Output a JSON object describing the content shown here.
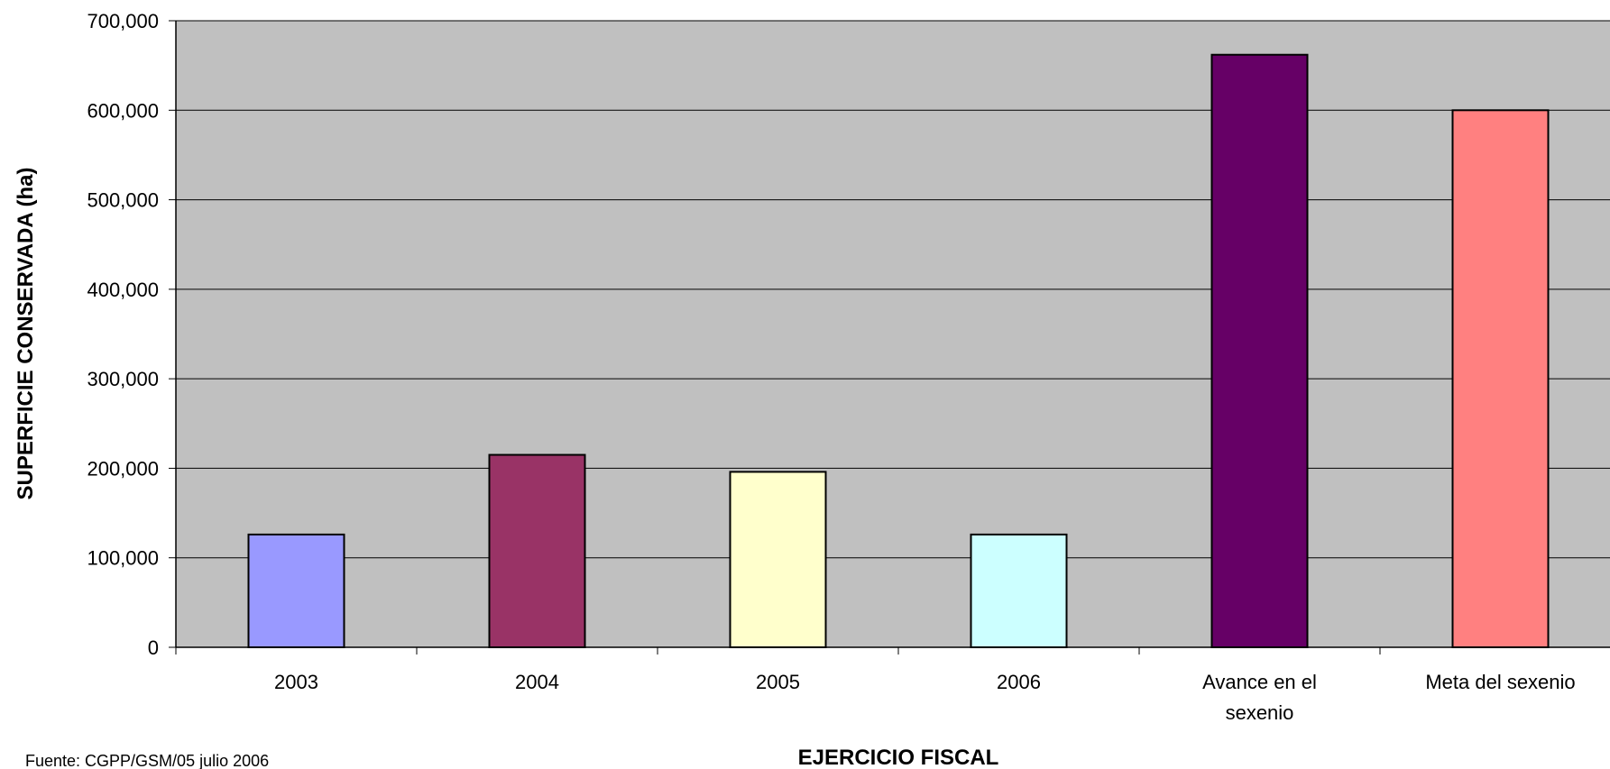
{
  "chart_data": {
    "type": "bar",
    "categories": [
      "2003",
      "2004",
      "2005",
      "2006",
      "Avance en el sexenio",
      "Meta del sexenio"
    ],
    "category_label_lines": [
      [
        "2003"
      ],
      [
        "2004"
      ],
      [
        "2005"
      ],
      [
        "2006"
      ],
      [
        "Avance en el",
        "sexenio"
      ],
      [
        "Meta del sexenio"
      ]
    ],
    "values": [
      126000,
      215000,
      196000,
      126000,
      662000,
      600000
    ],
    "bar_colors": [
      "#9999ff",
      "#993366",
      "#ffffcc",
      "#ccffff",
      "#660066",
      "#ff8080"
    ],
    "title": "",
    "xlabel": "EJERCICIO FISCAL",
    "ylabel": "SUPERFICIE CONSERVADA (ha)",
    "ylim": [
      0,
      700000
    ],
    "yticks": [
      0,
      100000,
      200000,
      300000,
      400000,
      500000,
      600000,
      700000
    ],
    "ytick_labels": [
      "0",
      "100,000",
      "200,000",
      "300,000",
      "400,000",
      "500,000",
      "600,000",
      "700,000"
    ],
    "grid": true,
    "plot_background": "#c0c0c0",
    "legend": "none"
  },
  "footnote": "Fuente: CGPP/GSM/05 julio 2006"
}
